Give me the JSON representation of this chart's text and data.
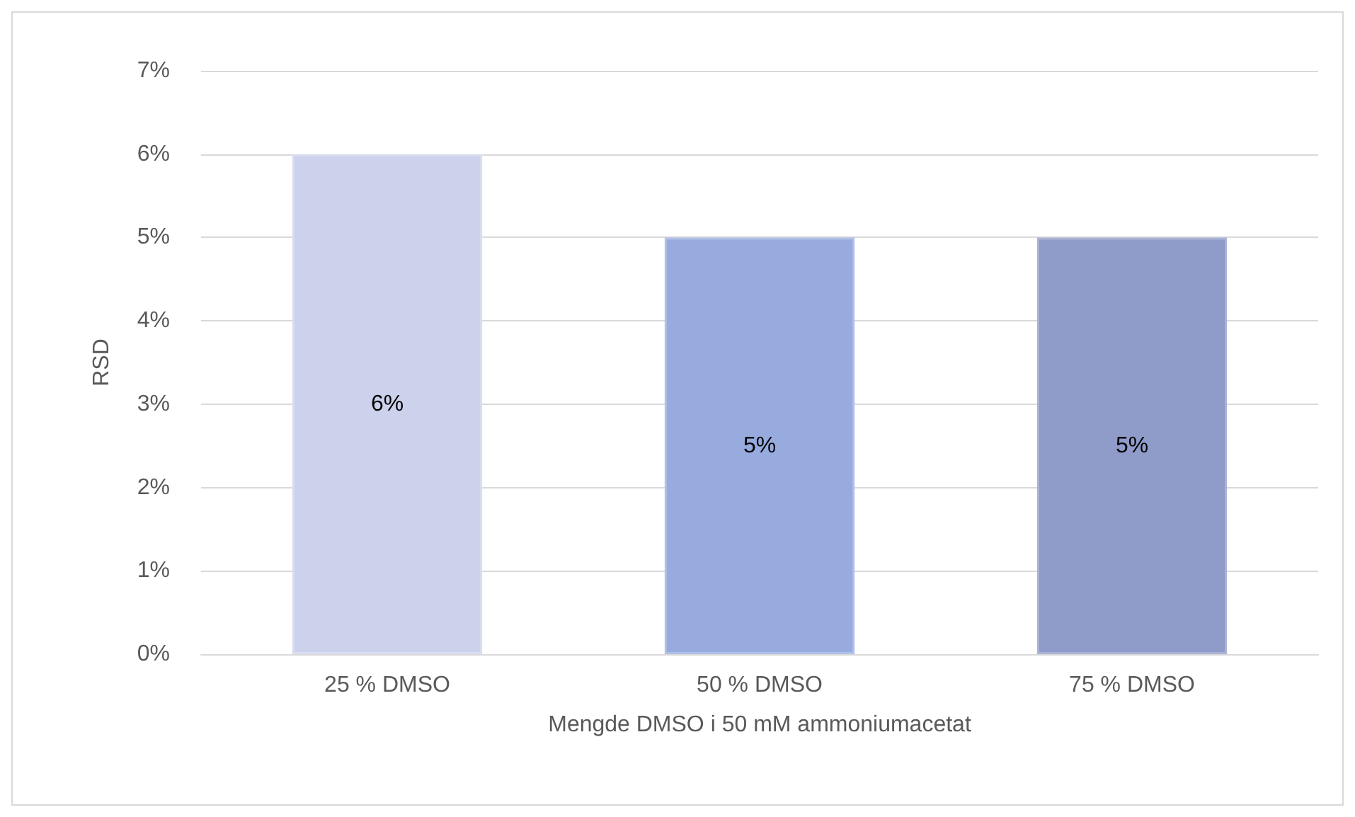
{
  "chart_data": {
    "type": "bar",
    "xlabel": "Mengde DMSO i 50 mM ammoniumacetat",
    "ylabel": "RSD",
    "categories": [
      "25 % DMSO",
      "50 % DMSO",
      "75 % DMSO"
    ],
    "values": [
      6,
      5,
      5
    ],
    "colors": [
      "#ccd2ec",
      "#97abdf",
      "#8f9bc9"
    ],
    "value_labels": [
      "6%",
      "5%",
      "5%"
    ],
    "ylim": [
      0,
      7
    ],
    "yticks": [
      {
        "value": 0,
        "label": "0%"
      },
      {
        "value": 1,
        "label": "1%"
      },
      {
        "value": 2,
        "label": "2%"
      },
      {
        "value": 3,
        "label": "3%"
      },
      {
        "value": 4,
        "label": "4%"
      },
      {
        "value": 5,
        "label": "5%"
      },
      {
        "value": 6,
        "label": "6%"
      },
      {
        "value": 7,
        "label": "7%"
      }
    ],
    "grid": "y"
  }
}
